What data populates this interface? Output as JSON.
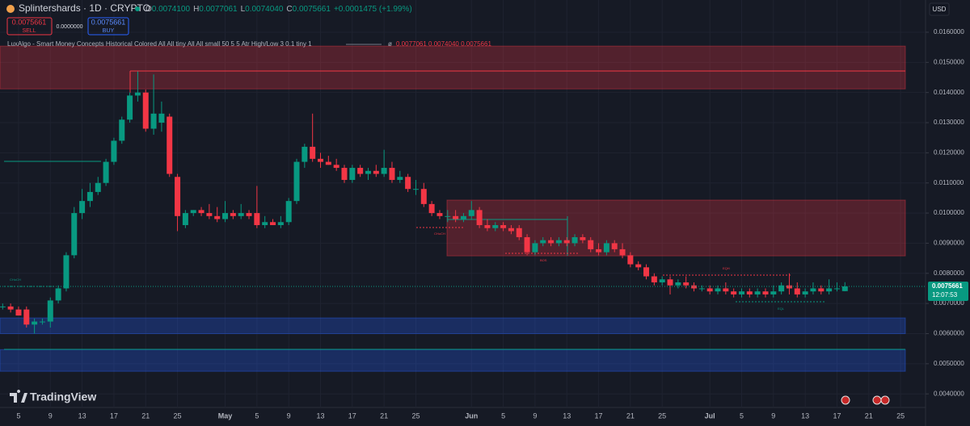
{
  "header": {
    "symbol": "Splintershards · 1D · CRYPTO",
    "ohlc": [
      {
        "key": "O",
        "value": "0.0074100"
      },
      {
        "key": "H",
        "value": "0.0077061"
      },
      {
        "key": "L",
        "value": "0.0074040"
      },
      {
        "key": "C",
        "value": "0.0075661"
      }
    ],
    "change": "+0.0001475 (+1.99%)",
    "sell_price": "0.0075661",
    "sell": "SELL",
    "spread": "0.0000000",
    "buy_price": "0.0075661",
    "buy": "BUY",
    "indicator": "LuxAlgo - Smart Money Concepts Historical Colored All All tiny All All small 50 5 5 Atr High/Low 3 0.1 tiny 1",
    "indicator_values": "0.0077061  0.0074040  0.0075661",
    "currency": "USD",
    "brand": "TradingView"
  },
  "chart_data": {
    "type": "candlestick",
    "categories": [
      null,
      null,
      "5",
      null,
      null,
      null,
      "9",
      null,
      null,
      null,
      "13",
      null,
      null,
      null,
      "17",
      null,
      null,
      null,
      "21",
      null,
      null,
      null,
      "25",
      null,
      null,
      null,
      null,
      null,
      "May",
      null,
      null,
      null,
      "5",
      null,
      null,
      null,
      "9",
      null,
      null,
      null,
      "13",
      null,
      null,
      null,
      "17",
      null,
      null,
      null,
      "21",
      null,
      null,
      null,
      "25",
      null,
      null,
      null,
      null,
      null,
      null,
      "Jun",
      null,
      null,
      null,
      "5",
      null,
      null,
      null,
      "9",
      null,
      null,
      null,
      "13",
      null,
      null,
      null,
      "17",
      null,
      null,
      null,
      "21",
      null,
      null,
      null,
      "25",
      null,
      null,
      null,
      null,
      null,
      "Jul",
      null,
      null,
      null,
      "5",
      null,
      null,
      null,
      "9",
      null,
      null,
      null,
      "13",
      null,
      null,
      null,
      "17",
      null,
      null,
      null,
      "21",
      null,
      null,
      null,
      "25"
    ],
    "ohlc": [
      [
        0.0069,
        0.007,
        0.0068,
        0.0069
      ],
      [
        0.0069,
        0.007,
        0.0067,
        0.0068
      ],
      [
        0.0068,
        0.0069,
        0.0066,
        0.0066
      ],
      [
        0.0068,
        0.0069,
        0.0062,
        0.0063
      ],
      [
        0.0063,
        0.0065,
        0.006,
        0.0064
      ],
      [
        0.0064,
        0.0065,
        0.0063,
        0.0064
      ],
      [
        0.0064,
        0.0072,
        0.0062,
        0.0071
      ],
      [
        0.0071,
        0.0076,
        0.007,
        0.0075
      ],
      [
        0.0075,
        0.0087,
        0.0074,
        0.0086
      ],
      [
        0.0086,
        0.0102,
        0.0085,
        0.01
      ],
      [
        0.01,
        0.0108,
        0.0098,
        0.0104
      ],
      [
        0.0104,
        0.011,
        0.0102,
        0.0107
      ],
      [
        0.0107,
        0.0112,
        0.0106,
        0.011
      ],
      [
        0.011,
        0.0118,
        0.0109,
        0.0117
      ],
      [
        0.0117,
        0.0125,
        0.0116,
        0.0124
      ],
      [
        0.0124,
        0.0132,
        0.0123,
        0.0131
      ],
      [
        0.0131,
        0.014,
        0.013,
        0.0139
      ],
      [
        0.0139,
        0.0147,
        0.0137,
        0.014
      ],
      [
        0.014,
        0.0141,
        0.0127,
        0.0128
      ],
      [
        0.0128,
        0.0146,
        0.0126,
        0.0133
      ],
      [
        0.013,
        0.0137,
        0.0127,
        0.0133
      ],
      [
        0.0132,
        0.0133,
        0.0112,
        0.0113
      ],
      [
        0.0112,
        0.0113,
        0.0094,
        0.0099
      ],
      [
        0.0096,
        0.0101,
        0.0095,
        0.01
      ],
      [
        0.01,
        0.0101,
        0.0099,
        0.0101
      ],
      [
        0.0101,
        0.0102,
        0.0099,
        0.01
      ],
      [
        0.01,
        0.0103,
        0.0098,
        0.0099
      ],
      [
        0.0099,
        0.0102,
        0.0097,
        0.0098
      ],
      [
        0.0098,
        0.0104,
        0.0097,
        0.01
      ],
      [
        0.01,
        0.0101,
        0.0098,
        0.0099
      ],
      [
        0.0099,
        0.0103,
        0.0098,
        0.01
      ],
      [
        0.01,
        0.0101,
        0.0098,
        0.0099
      ],
      [
        0.01,
        0.0109,
        0.0095,
        0.0096
      ],
      [
        0.0096,
        0.0099,
        0.0095,
        0.0097
      ],
      [
        0.0097,
        0.0098,
        0.0096,
        0.0096
      ],
      [
        0.0096,
        0.0099,
        0.0095,
        0.0097
      ],
      [
        0.0097,
        0.0105,
        0.0096,
        0.0104
      ],
      [
        0.0104,
        0.0118,
        0.0103,
        0.0117
      ],
      [
        0.0117,
        0.0123,
        0.0115,
        0.0122
      ],
      [
        0.0122,
        0.0133,
        0.0117,
        0.0118
      ],
      [
        0.0118,
        0.012,
        0.0115,
        0.0117
      ],
      [
        0.0117,
        0.0119,
        0.0116,
        0.0116
      ],
      [
        0.0116,
        0.0118,
        0.0114,
        0.0115
      ],
      [
        0.0115,
        0.0116,
        0.011,
        0.0111
      ],
      [
        0.0111,
        0.0116,
        0.011,
        0.0115
      ],
      [
        0.0115,
        0.0116,
        0.0112,
        0.0113
      ],
      [
        0.0113,
        0.0115,
        0.0111,
        0.0114
      ],
      [
        0.0114,
        0.0116,
        0.0112,
        0.0113
      ],
      [
        0.0113,
        0.0121,
        0.0112,
        0.0115
      ],
      [
        0.0115,
        0.0117,
        0.011,
        0.0111
      ],
      [
        0.0111,
        0.0114,
        0.011,
        0.0112
      ],
      [
        0.0112,
        0.0113,
        0.0107,
        0.0108
      ],
      [
        0.0108,
        0.0111,
        0.0106,
        0.0108
      ],
      [
        0.0108,
        0.011,
        0.0102,
        0.0103
      ],
      [
        0.0103,
        0.0104,
        0.0099,
        0.01
      ],
      [
        0.01,
        0.0101,
        0.0098,
        0.0099
      ],
      [
        0.0099,
        0.0101,
        0.0097,
        0.0099
      ],
      [
        0.0099,
        0.0101,
        0.0097,
        0.0098
      ],
      [
        0.0098,
        0.01,
        0.0097,
        0.0099
      ],
      [
        0.0099,
        0.0104,
        0.0098,
        0.0101
      ],
      [
        0.0101,
        0.0102,
        0.0095,
        0.0096
      ],
      [
        0.0096,
        0.0098,
        0.0094,
        0.0095
      ],
      [
        0.0095,
        0.0097,
        0.0094,
        0.0096
      ],
      [
        0.0096,
        0.0097,
        0.0094,
        0.0095
      ],
      [
        0.0095,
        0.0096,
        0.0093,
        0.0094
      ],
      [
        0.0095,
        0.0096,
        0.0091,
        0.0092
      ],
      [
        0.0092,
        0.0093,
        0.0086,
        0.0087
      ],
      [
        0.0087,
        0.0091,
        0.0086,
        0.009
      ],
      [
        0.009,
        0.0092,
        0.0089,
        0.0091
      ],
      [
        0.0091,
        0.0092,
        0.0089,
        0.009
      ],
      [
        0.009,
        0.0092,
        0.0089,
        0.0091
      ],
      [
        0.0091,
        0.0092,
        0.0089,
        0.009
      ],
      [
        0.009,
        0.0093,
        0.0089,
        0.0092
      ],
      [
        0.0092,
        0.0093,
        0.009,
        0.0091
      ],
      [
        0.0091,
        0.0092,
        0.0087,
        0.0088
      ],
      [
        0.0088,
        0.009,
        0.0086,
        0.0087
      ],
      [
        0.0087,
        0.0091,
        0.0086,
        0.009
      ],
      [
        0.009,
        0.0091,
        0.0087,
        0.0088
      ],
      [
        0.0088,
        0.009,
        0.0085,
        0.0086
      ],
      [
        0.0086,
        0.0087,
        0.0082,
        0.0083
      ],
      [
        0.0083,
        0.0084,
        0.0081,
        0.0082
      ],
      [
        0.0082,
        0.0083,
        0.0078,
        0.0079
      ],
      [
        0.0079,
        0.008,
        0.0076,
        0.0077
      ],
      [
        0.0077,
        0.0079,
        0.0076,
        0.0078
      ],
      [
        0.0078,
        0.0079,
        0.0073,
        0.0076
      ],
      [
        0.0076,
        0.0078,
        0.0075,
        0.0077
      ],
      [
        0.0077,
        0.0079,
        0.0075,
        0.0076
      ],
      [
        0.0076,
        0.0077,
        0.0074,
        0.0075
      ],
      [
        0.0075,
        0.0076,
        0.0074,
        0.0075
      ],
      [
        0.0075,
        0.0076,
        0.0073,
        0.0074
      ],
      [
        0.0074,
        0.0076,
        0.0073,
        0.0075
      ],
      [
        0.0075,
        0.0077,
        0.0073,
        0.0074
      ],
      [
        0.0074,
        0.0075,
        0.0072,
        0.0073
      ],
      [
        0.0073,
        0.0075,
        0.0072,
        0.0074
      ],
      [
        0.0074,
        0.0075,
        0.0072,
        0.0073
      ],
      [
        0.0073,
        0.0075,
        0.0072,
        0.0074
      ],
      [
        0.0074,
        0.0075,
        0.0072,
        0.0073
      ],
      [
        0.0073,
        0.0076,
        0.0072,
        0.0074
      ],
      [
        0.0074,
        0.0077,
        0.0073,
        0.0076
      ],
      [
        0.0076,
        0.008,
        0.0073,
        0.0075
      ],
      [
        0.0075,
        0.0077,
        0.0072,
        0.0073
      ],
      [
        0.0073,
        0.0075,
        0.0072,
        0.0074
      ],
      [
        0.0074,
        0.0077,
        0.0073,
        0.0075
      ],
      [
        0.0075,
        0.0076,
        0.0073,
        0.0074
      ],
      [
        0.0074,
        0.0078,
        0.0073,
        0.0075
      ],
      [
        0.0075,
        0.0077,
        0.0074,
        0.0075
      ],
      [
        0.00741,
        0.0077061,
        0.007404,
        0.0075661
      ],
      null,
      null,
      null,
      null,
      null,
      null,
      null
    ],
    "up_color": "#089981",
    "down_color": "#f23645",
    "ylim": [
      0.00355,
      0.01707
    ],
    "yticks": [
      {
        "value": 0.004,
        "label": "0.0040000"
      },
      {
        "value": 0.005,
        "label": "0.0050000"
      },
      {
        "value": 0.006,
        "label": "0.0060000"
      },
      {
        "value": 0.007,
        "label": "0.0070000"
      },
      {
        "value": 0.008,
        "label": "0.0080000"
      },
      {
        "value": 0.009,
        "label": "0.0090000"
      },
      {
        "value": 0.01,
        "label": "0.0100000"
      },
      {
        "value": 0.011,
        "label": "0.0110000"
      },
      {
        "value": 0.012,
        "label": "0.0120000"
      },
      {
        "value": 0.013,
        "label": "0.0130000"
      },
      {
        "value": 0.014,
        "label": "0.0140000"
      },
      {
        "value": 0.015,
        "label": "0.0150000"
      },
      {
        "value": 0.016,
        "label": "0.0160000"
      }
    ],
    "grid": true,
    "last_price": 0.0075661,
    "countdown": "12:07:53",
    "zones": [
      {
        "low": 0.01412,
        "high": 0.01554,
        "color": "#f23645"
      },
      {
        "low": 0.00858,
        "high": 0.01043,
        "color": "#f23645"
      },
      {
        "low": 0.006,
        "high": 0.00652,
        "color": "#2962ff"
      },
      {
        "low": 0.00475,
        "high": 0.00547,
        "color": "#2962ff"
      }
    ],
    "annotations": [
      "CHoCH",
      "CHoCH",
      "BOS",
      "EQH",
      "EQL"
    ]
  }
}
